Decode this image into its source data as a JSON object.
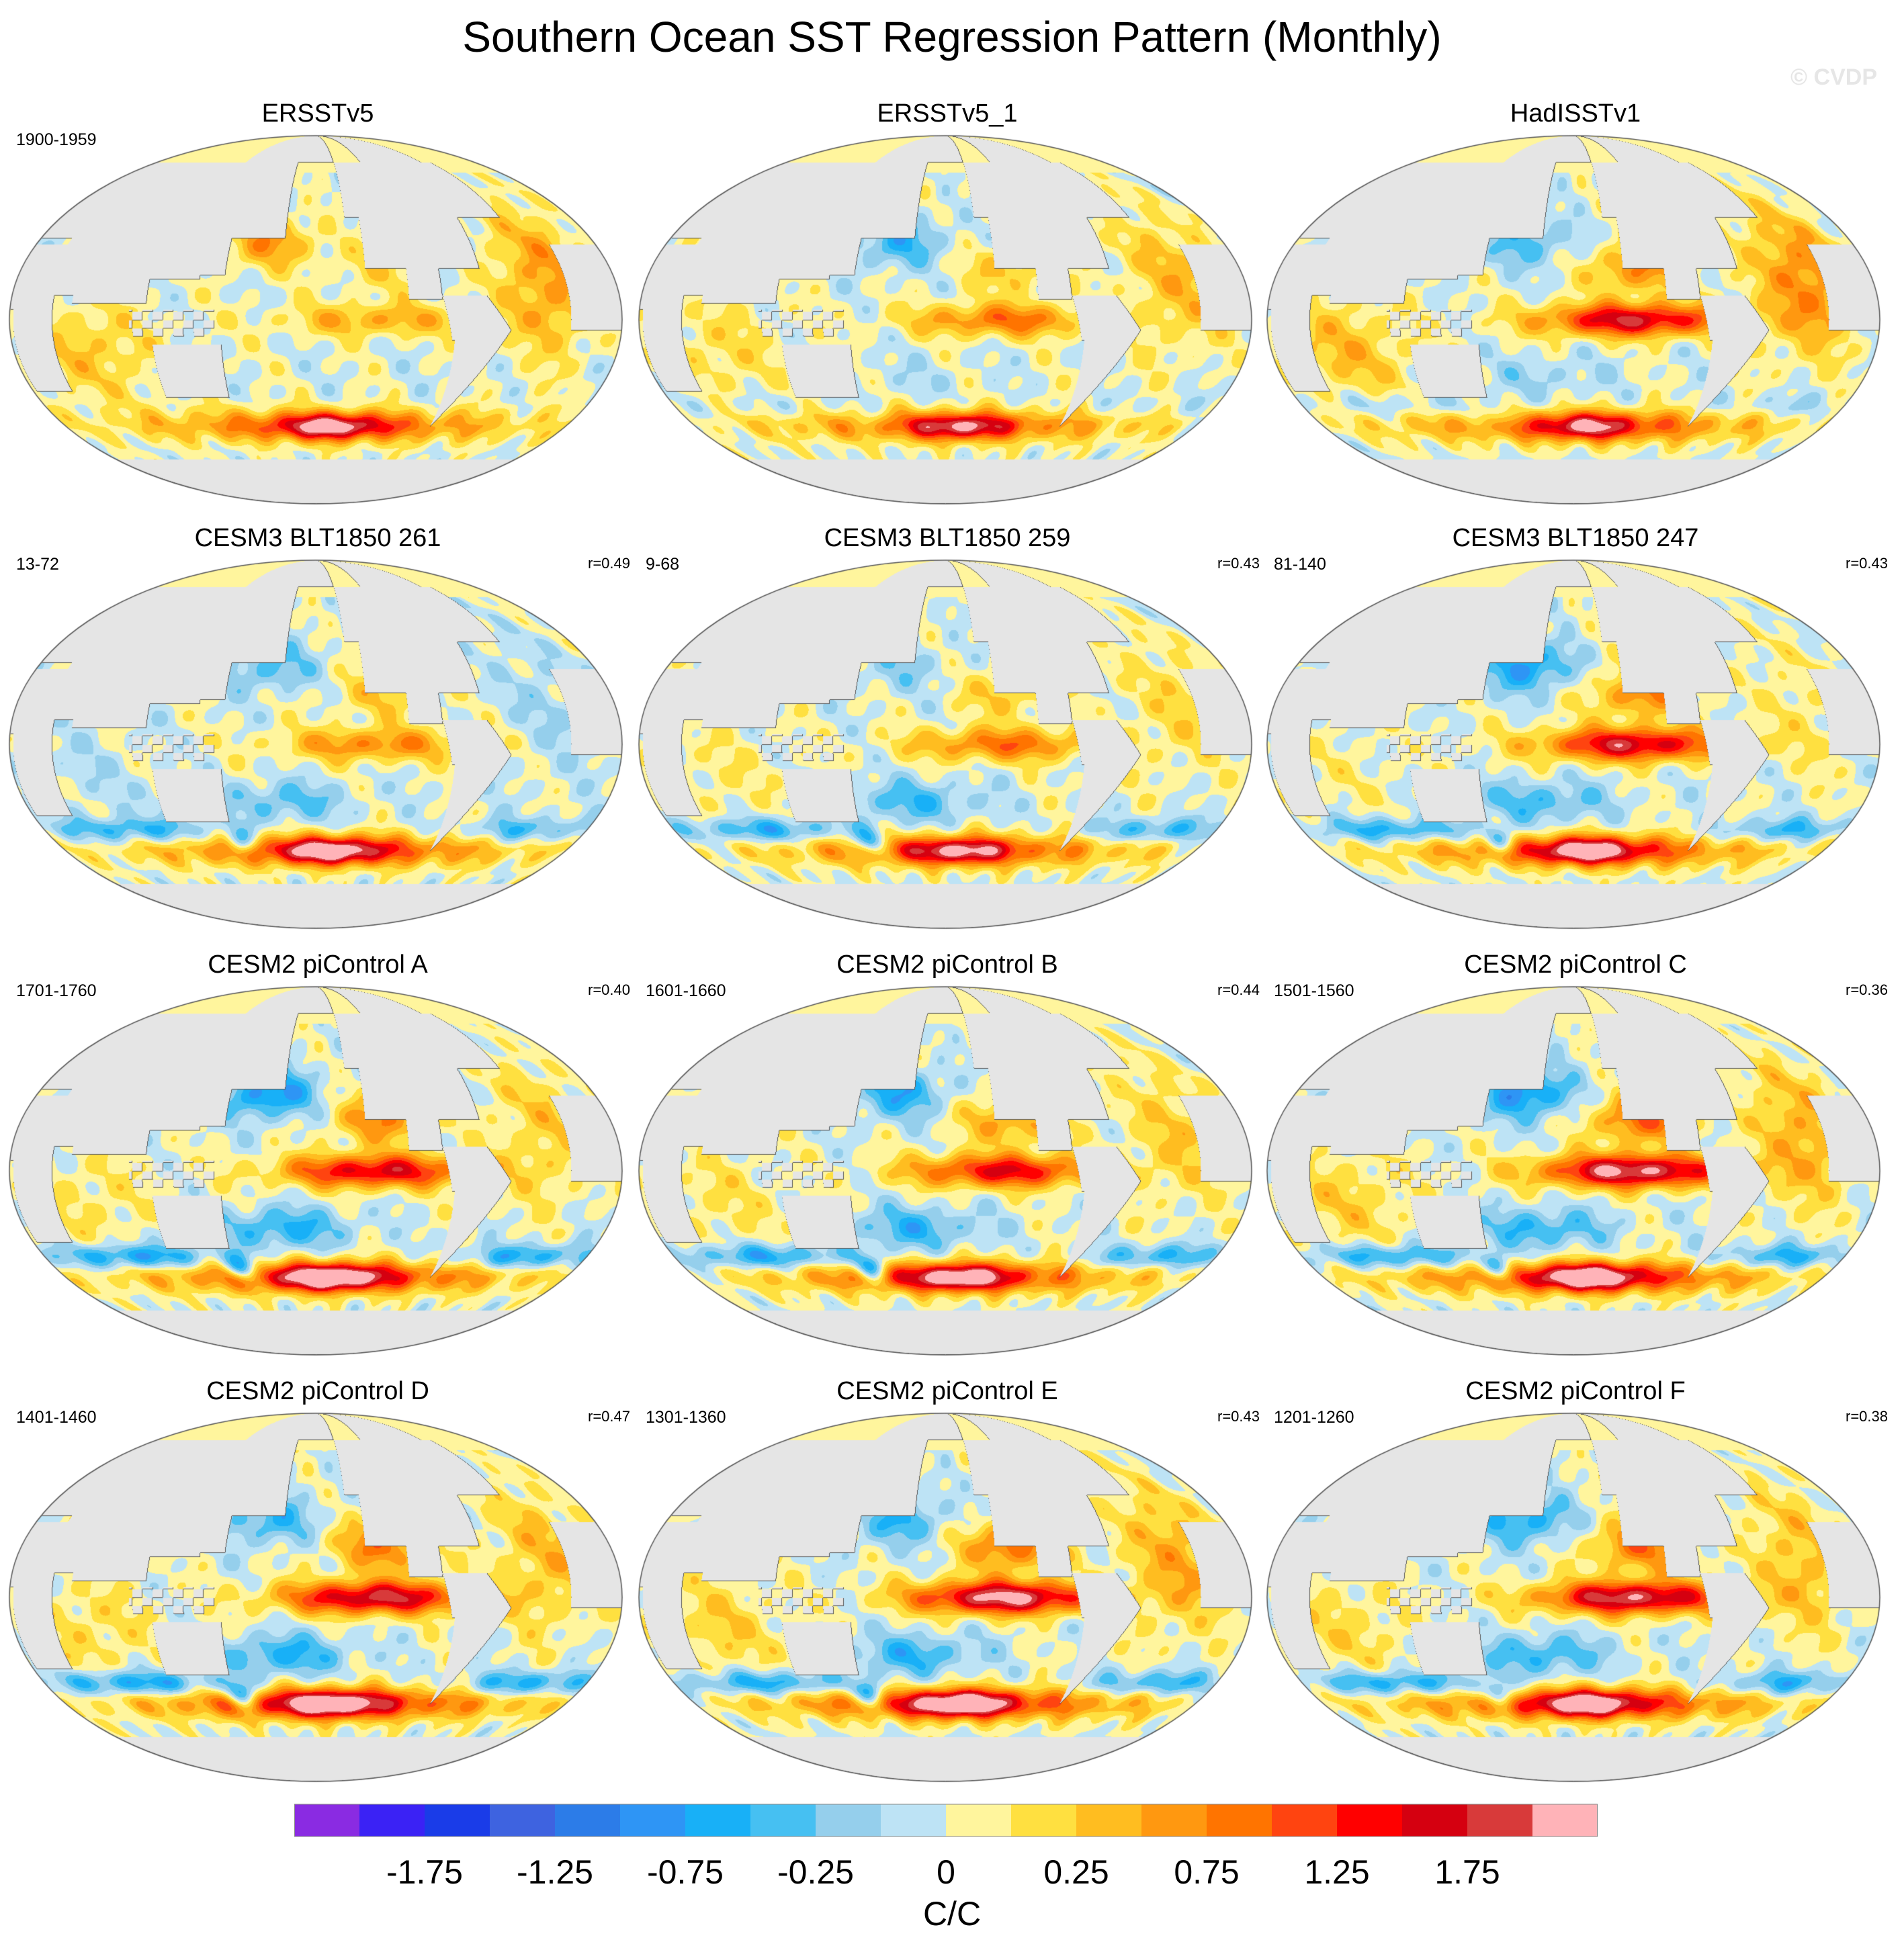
{
  "title": "Southern Ocean SST Regression Pattern (Monthly)",
  "copyright": "© CVDP",
  "colors": {
    "land": "#e5e5e5",
    "coast": "#555555",
    "palette": [
      "#8a2be2",
      "#3b22f5",
      "#1a3ce8",
      "#3e63e0",
      "#2c7ce8",
      "#2e95f5",
      "#18b0f7",
      "#46c0f2",
      "#95cfec",
      "#bde3f5",
      "#fff59d",
      "#ffe040",
      "#ffbd20",
      "#ff9810",
      "#ff7400",
      "#ff4410",
      "#ff0000",
      "#d50010",
      "#d83a3a",
      "#ffb3b8"
    ]
  },
  "colorbar": {
    "labels": [
      "-1.75",
      "-1.25",
      "-0.75",
      "-0.25",
      "0",
      "0.25",
      "0.75",
      "1.25",
      "1.75"
    ],
    "units": "C/C"
  },
  "panels": [
    {
      "title": "ERSSTv5",
      "period": "1900-1959",
      "r": "",
      "pattern": {
        "enso": 0.6,
        "npac": 0.7,
        "so": 1.0,
        "dipole": 0.0,
        "atl": 0.7,
        "blob": 1.2
      }
    },
    {
      "title": "ERSSTv5_1",
      "period": "",
      "r": "",
      "pattern": {
        "enso": 0.9,
        "npac": -0.6,
        "so": 0.9,
        "dipole": 0.2,
        "atl": 0.5,
        "blob": 1.1
      }
    },
    {
      "title": "HadISSTv1",
      "period": "",
      "r": "",
      "pattern": {
        "enso": 1.6,
        "npac": -0.5,
        "so": 1.0,
        "dipole": 0.4,
        "atl": 0.8,
        "blob": 1.0
      }
    },
    {
      "title": "CESM3 BLT1850 261",
      "period": "13-72",
      "r": "r=0.49",
      "pattern": {
        "enso": 0.8,
        "npac": -0.5,
        "so": 1.1,
        "dipole": 0.8,
        "atl": -0.2,
        "blob": 1.3
      }
    },
    {
      "title": "CESM3 BLT1850 259",
      "period": "9-68",
      "r": "r=0.43",
      "pattern": {
        "enso": 0.9,
        "npac": -0.3,
        "so": 1.0,
        "dipole": 0.9,
        "atl": 0.3,
        "blob": 1.1
      }
    },
    {
      "title": "CESM3 BLT1850 247",
      "period": "81-140",
      "r": "r=0.43",
      "pattern": {
        "enso": 1.6,
        "npac": -0.8,
        "so": 1.1,
        "dipole": 0.9,
        "atl": 0.2,
        "blob": 1.3
      }
    },
    {
      "title": "CESM2 piControl A",
      "period": "1701-1760",
      "r": "r=0.40",
      "pattern": {
        "enso": 1.5,
        "npac": -0.9,
        "so": 1.2,
        "dipole": 1.1,
        "atl": 0.4,
        "blob": 1.5
      }
    },
    {
      "title": "CESM2 piControl B",
      "period": "1601-1660",
      "r": "r=0.44",
      "pattern": {
        "enso": 1.4,
        "npac": -0.7,
        "so": 1.1,
        "dipole": 1.0,
        "atl": 0.4,
        "blob": 1.3
      }
    },
    {
      "title": "CESM2 piControl C",
      "period": "1501-1560",
      "r": "r=0.36",
      "pattern": {
        "enso": 1.9,
        "npac": -0.9,
        "so": 1.2,
        "dipole": 1.0,
        "atl": 0.6,
        "blob": 1.4
      }
    },
    {
      "title": "CESM2 piControl D",
      "period": "1401-1460",
      "r": "r=0.47",
      "pattern": {
        "enso": 1.7,
        "npac": -0.6,
        "so": 1.3,
        "dipole": 1.1,
        "atl": 0.5,
        "blob": 1.3
      }
    },
    {
      "title": "CESM2 piControl E",
      "period": "1301-1360",
      "r": "r=0.43",
      "pattern": {
        "enso": 1.9,
        "npac": -0.6,
        "so": 1.2,
        "dipole": 1.0,
        "atl": 0.6,
        "blob": 1.5
      }
    },
    {
      "title": "CESM2 piControl F",
      "period": "1201-1260",
      "r": "r=0.38",
      "pattern": {
        "enso": 1.8,
        "npac": -0.7,
        "so": 1.2,
        "dipole": 1.0,
        "atl": 0.5,
        "blob": 1.3
      }
    }
  ]
}
